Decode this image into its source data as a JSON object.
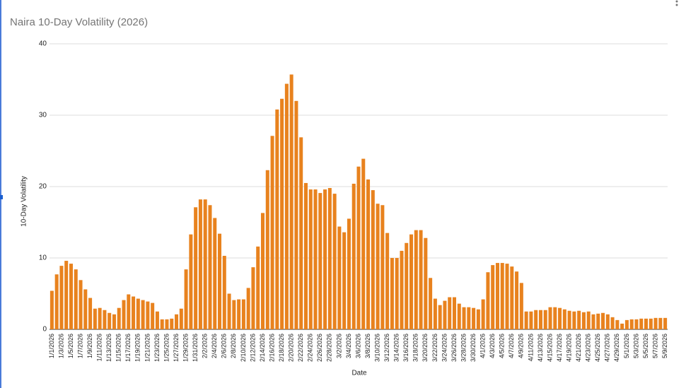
{
  "chart_data": {
    "type": "bar",
    "title": "Naira 10-Day Volatility (2026)",
    "x_label": "Date",
    "y_label": "10-Day Volatility",
    "color": "#e8821e",
    "grid": true,
    "ylim": [
      0,
      40
    ],
    "yticks": [
      0,
      10,
      20,
      30,
      40
    ],
    "categories": [
      "1/1/2026",
      null,
      "1/3/2026",
      null,
      "1/5/2026",
      null,
      "1/7/2026",
      null,
      "1/9/2026",
      null,
      "1/11/2026",
      null,
      "1/13/2026",
      null,
      "1/15/2026",
      null,
      "1/17/2026",
      null,
      "1/19/2026",
      null,
      "1/21/2026",
      null,
      "1/23/2026",
      null,
      "1/25/2026",
      null,
      "1/27/2026",
      null,
      "1/29/2026",
      null,
      "1/31/2026",
      null,
      "2/2/2026",
      null,
      "2/4/2026",
      null,
      "2/6/2026",
      null,
      "2/8/2026",
      null,
      "2/10/2026",
      null,
      "2/12/2026",
      null,
      "2/14/2026",
      null,
      "2/16/2026",
      null,
      "2/18/2026",
      null,
      "2/20/2026",
      null,
      "2/22/2026",
      null,
      "2/24/2026",
      null,
      "2/26/2026",
      null,
      "2/28/2026",
      null,
      "3/2/2026",
      null,
      "3/4/2026",
      null,
      "3/6/2026",
      null,
      "3/8/2026",
      null,
      "3/10/2026",
      null,
      "3/12/2026",
      null,
      "3/14/2026",
      null,
      "3/16/2026",
      null,
      "3/18/2026",
      null,
      "3/20/2026",
      null,
      "3/22/2026",
      null,
      "3/24/2026",
      null,
      "3/26/2026",
      null,
      "3/28/2026",
      null,
      "3/30/2026",
      null,
      "4/1/2026",
      null,
      "4/3/2026",
      null,
      "4/5/2026",
      null,
      "4/7/2026",
      null,
      "4/9/2026",
      null,
      "4/11/2026",
      null,
      "4/13/2026",
      null,
      "4/15/2026",
      null,
      "4/17/2026",
      null,
      "4/19/2026",
      null,
      "4/21/2026",
      null,
      "4/23/2026",
      null,
      "4/25/2026",
      null,
      "4/27/2026",
      null,
      "4/29/2026",
      null,
      "5/1/2026",
      null,
      "5/3/2026",
      null,
      "5/5/2026",
      null,
      "5/7/2026",
      null,
      "5/9/2026"
    ],
    "values": [
      5.4,
      7.7,
      8.9,
      9.6,
      9.2,
      8.4,
      6.9,
      5.6,
      4.4,
      2.9,
      3.0,
      2.7,
      2.3,
      2.1,
      3.0,
      4.1,
      4.9,
      4.6,
      4.3,
      4.1,
      3.9,
      3.7,
      2.5,
      1.4,
      1.4,
      1.5,
      2.1,
      2.9,
      8.4,
      13.3,
      17.1,
      18.2,
      18.2,
      17.4,
      15.6,
      13.4,
      10.3,
      5.0,
      4.1,
      4.2,
      4.2,
      5.8,
      8.7,
      11.6,
      16.3,
      22.3,
      27.1,
      30.8,
      32.3,
      34.4,
      35.7,
      32.0,
      26.9,
      20.5,
      19.6,
      19.6,
      19.1,
      19.6,
      19.8,
      19.0,
      14.4,
      13.6,
      15.5,
      20.4,
      22.8,
      23.9,
      21.0,
      19.5,
      17.6,
      17.4,
      13.5,
      10.0,
      10.0,
      11.0,
      12.1,
      13.3,
      13.9,
      13.9,
      12.8,
      7.2,
      4.3,
      3.4,
      4.0,
      4.5,
      4.5,
      3.6,
      3.1,
      3.1,
      3.0,
      2.8,
      4.2,
      8.0,
      9.0,
      9.3,
      9.3,
      9.2,
      8.8,
      8.1,
      6.5,
      2.5,
      2.5,
      2.7,
      2.7,
      2.7,
      3.1,
      3.1,
      3.0,
      2.8,
      2.6,
      2.5,
      2.6,
      2.4,
      2.5,
      2.1,
      2.2,
      2.3,
      2.1,
      1.7,
      1.3,
      0.8,
      1.3,
      1.4,
      1.4,
      1.5,
      1.5,
      1.5,
      1.6,
      1.6,
      1.6
    ]
  }
}
